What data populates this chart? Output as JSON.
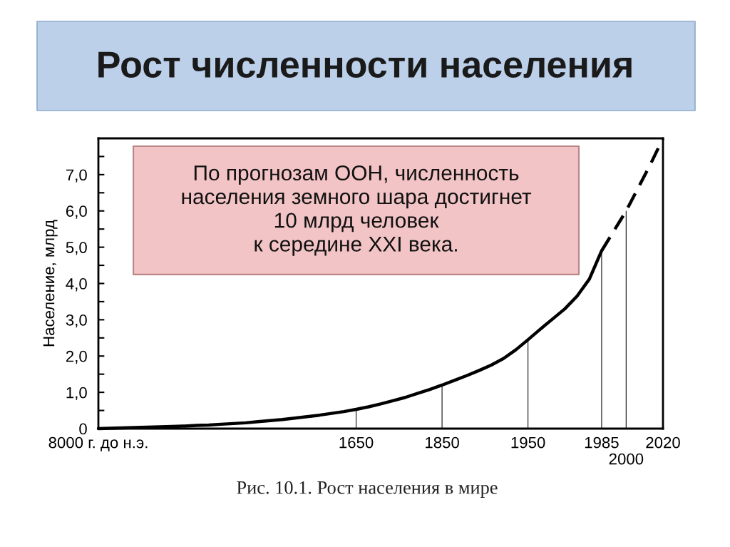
{
  "chart_data": {
    "type": "line",
    "title": "Рост численности населения",
    "ylabel": "Население, млрд",
    "annotations": [
      "По прогнозам ООН, численность\nнаселения земного шара достигнет\n10 млрд человек\nк середине XXI века.",
      "Рис. 10.1. Рост населения в мире"
    ],
    "categories": [
      "8000 г. до н.э.",
      null,
      null,
      null,
      null,
      null,
      null,
      null,
      null,
      null,
      null,
      null,
      null,
      null,
      null,
      null,
      null,
      null,
      null,
      null,
      null,
      "1650",
      null,
      null,
      null,
      null,
      null,
      null,
      "1850",
      null,
      null,
      null,
      null,
      null,
      null,
      "1950",
      null,
      null,
      null,
      null,
      null,
      "1985",
      null,
      "2000",
      null,
      null,
      "2020"
    ],
    "series": [
      {
        "color": "#000000",
        "values": [
          0.0,
          0.01,
          0.02,
          0.03,
          0.04,
          0.05,
          0.06,
          0.07,
          0.09,
          0.1,
          0.12,
          0.14,
          0.16,
          0.19,
          0.22,
          0.25,
          0.29,
          0.33,
          0.37,
          0.42,
          0.47,
          0.53,
          0.6,
          0.68,
          0.77,
          0.86,
          0.97,
          1.08,
          1.2,
          1.33,
          1.46,
          1.6,
          1.75,
          1.93,
          2.17,
          2.45,
          2.74,
          3.02,
          3.3,
          3.65,
          4.12,
          4.9,
          null,
          null,
          null,
          null,
          null
        ]
      },
      {
        "color": "#000000",
        "line_style": "dashed",
        "values": [
          null,
          null,
          null,
          null,
          null,
          null,
          null,
          null,
          null,
          null,
          null,
          null,
          null,
          null,
          null,
          null,
          null,
          null,
          null,
          null,
          null,
          null,
          null,
          null,
          null,
          null,
          null,
          null,
          null,
          null,
          null,
          null,
          null,
          null,
          null,
          null,
          null,
          null,
          null,
          null,
          null,
          4.9,
          5.45,
          6.0,
          6.65,
          7.3,
          8.0
        ]
      },
      {
        "type": "bar",
        "color": "#222222",
        "values": [
          null,
          null,
          null,
          null,
          null,
          null,
          null,
          null,
          null,
          null,
          null,
          null,
          null,
          null,
          null,
          null,
          null,
          null,
          null,
          null,
          null,
          0.53,
          null,
          null,
          null,
          null,
          null,
          null,
          1.2,
          null,
          null,
          null,
          null,
          null,
          null,
          2.45,
          null,
          null,
          null,
          null,
          null,
          4.9,
          null,
          6.0,
          null,
          null,
          null
        ]
      }
    ],
    "line_style": "solid",
    "marker": "none",
    "ylim": [
      0,
      8
    ],
    "yticks": [
      0,
      {
        "value": 0.5,
        "label": null
      },
      {
        "value": 1,
        "label": "1,0"
      },
      {
        "value": 1.5,
        "label": null
      },
      {
        "value": 2,
        "label": "2,0"
      },
      {
        "value": 2.5,
        "label": null
      },
      {
        "value": 3,
        "label": "3,0"
      },
      {
        "value": 3.5,
        "label": null
      },
      {
        "value": 4,
        "label": "4,0"
      },
      {
        "value": 4.5,
        "label": null
      },
      {
        "value": 5,
        "label": "5,0"
      },
      {
        "value": 5.5,
        "label": null
      },
      {
        "value": 6,
        "label": "6,0"
      },
      {
        "value": 6.5,
        "label": null
      },
      {
        "value": 7,
        "label": "7,0"
      },
      {
        "value": 7.5,
        "label": null
      }
    ]
  }
}
